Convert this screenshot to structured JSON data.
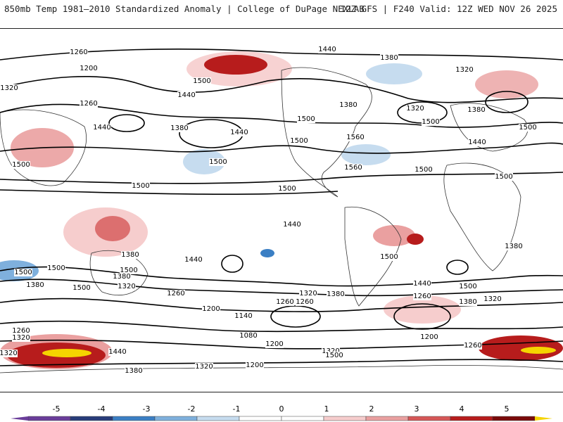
{
  "header": {
    "left_title": "850mb Temp 1981–2010 Standardized Anomaly | College of DuPage NEXLAB",
    "right_title": "12Z GFS | F240 Valid: 12Z WED NOV 26 2025"
  },
  "map": {
    "contour_labels": [
      "1260",
      "1440",
      "1380",
      "1200",
      "1320",
      "1500",
      "1320",
      "1440",
      "1260",
      "1380",
      "1440",
      "1500",
      "1320",
      "1380",
      "1440",
      "1500",
      "1560",
      "1500",
      "1500",
      "1560",
      "1500",
      "1440",
      "1380",
      "1500",
      "1500",
      "1500",
      "1500",
      "1500",
      "1440",
      "1440",
      "1380",
      "1500",
      "1380",
      "1320",
      "1260",
      "1200",
      "1140",
      "1080",
      "1200",
      "1260",
      "1320",
      "1260",
      "1320",
      "1380",
      "1500",
      "1440",
      "1500",
      "1380",
      "1320",
      "1260",
      "1200",
      "1260",
      "1200",
      "1320",
      "1380",
      "1440",
      "1320",
      "1260",
      "1320",
      "1500",
      "1380",
      "1500",
      "1500",
      "1500",
      "1380",
      "1320",
      "1440"
    ],
    "colors": {
      "neg5": "#6a3d9a",
      "neg4": "#283c7a",
      "neg3": "#3b7fc4",
      "neg2": "#7fb0dd",
      "neg1": "#c6dcef",
      "zero": "#ffffff",
      "pos1": "#f6cdcd",
      "pos2": "#eaa0a0",
      "pos3": "#d65757",
      "pos4": "#b71c1c",
      "pos5": "#7a0a0a",
      "extreme": "#f5d400"
    }
  },
  "legend": {
    "ticks": [
      "-5",
      "-4",
      "-3",
      "-2",
      "-1",
      "0",
      "1",
      "2",
      "3",
      "4",
      "5"
    ]
  }
}
